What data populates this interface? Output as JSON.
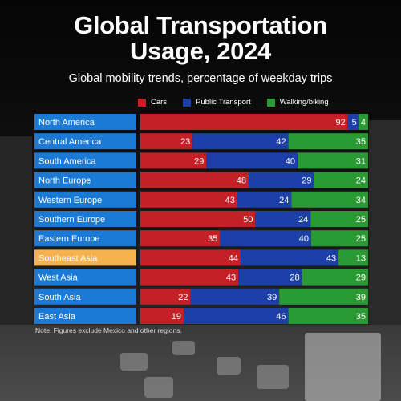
{
  "title_line1": "Global Transportation",
  "title_line2": "Usage, 2024",
  "subtitle": "Global mobility trends, percentage of weekday trips",
  "note": "Note: Figures exclude Mexico and other regions.",
  "colors": {
    "cars": "#c42026",
    "public_transport": "#1c3fa8",
    "walking": "#2a9a35",
    "label_bg": "#1a7ad6",
    "highlight_bg": "#f7b24e"
  },
  "chart_data": {
    "type": "bar",
    "orientation": "horizontal",
    "stacked": true,
    "categories": [
      "North America",
      "Central America",
      "South America",
      "North Europe",
      "Western Europe",
      "Southern Europe",
      "Eastern Europe",
      "Southeast Asia",
      "West Asia",
      "South Asia",
      "East Asia"
    ],
    "highlighted_category": "Southeast Asia",
    "legend_position": "top",
    "series": [
      {
        "name": "Cars",
        "color": "#c42026",
        "values": [
          92,
          23,
          29,
          48,
          43,
          50,
          35,
          44,
          43,
          22,
          19
        ]
      },
      {
        "name": "Public Transport",
        "color": "#1c3fa8",
        "values": [
          5,
          42,
          40,
          29,
          24,
          24,
          40,
          43,
          28,
          39,
          46
        ]
      },
      {
        "name": "Walking/biking",
        "color": "#2a9a35",
        "values": [
          4,
          35,
          31,
          24,
          34,
          25,
          25,
          13,
          29,
          39,
          35
        ]
      }
    ]
  }
}
